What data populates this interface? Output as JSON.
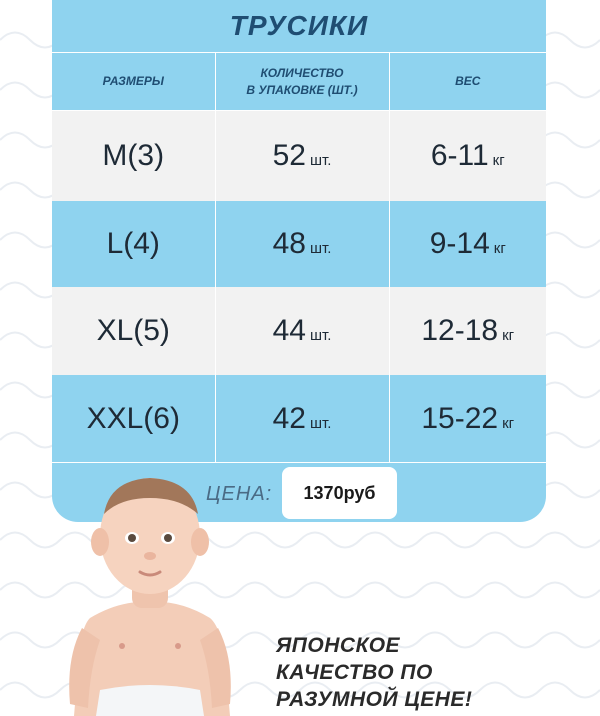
{
  "title": "ТРУСИКИ",
  "headers": {
    "size": "РАЗМЕРЫ",
    "count_line1": "КОЛИЧЕСТВО",
    "count_line2": "В УПАКОВКЕ (ШТ.)",
    "weight": "ВЕС"
  },
  "rows": [
    {
      "size": "M(3)",
      "count": "52",
      "count_unit": "шт.",
      "weight": "6-11",
      "weight_unit": "кг"
    },
    {
      "size": "L(4)",
      "count": "48",
      "count_unit": "шт.",
      "weight": "9-14",
      "weight_unit": "кг"
    },
    {
      "size": "XL(5)",
      "count": "44",
      "count_unit": "шт.",
      "weight": "12-18",
      "weight_unit": "кг"
    },
    {
      "size": "XXL(6)",
      "count": "42",
      "count_unit": "шт.",
      "weight": "15-22",
      "weight_unit": "кг"
    }
  ],
  "price": {
    "label": "ЦЕНА:",
    "value": "1370руб"
  },
  "slogan": {
    "line1": "ЯПОНСКОЕ",
    "line2": "КАЧЕСТВО ПО",
    "line3": "РАЗУМНОЙ ЦЕНЕ!"
  },
  "colors": {
    "card_blue": "#8fd3ef",
    "row_white": "#f2f2f2",
    "title_navy": "#1f4d72"
  }
}
